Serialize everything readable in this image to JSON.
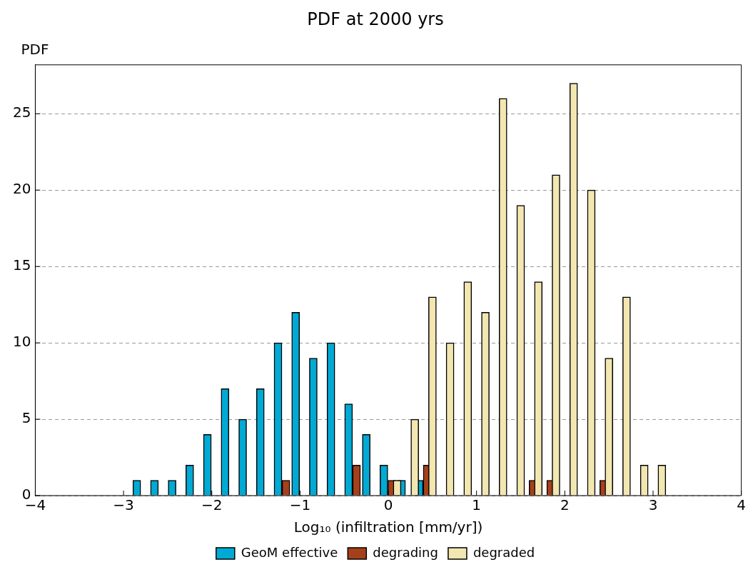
{
  "chart_data": {
    "type": "bar",
    "title": "PDF at 2000 yrs",
    "xlabel": "Log₁₀ (infiltration [mm/yr])",
    "ylabel": "PDF",
    "xlim": [
      -4,
      4
    ],
    "xticks": [
      {
        "value": -4,
        "label": "−4"
      },
      {
        "value": -3,
        "label": "−3"
      },
      {
        "value": -2,
        "label": "−2"
      },
      {
        "value": -1,
        "label": "−1"
      },
      0,
      1,
      2,
      3,
      4
    ],
    "ylim": [
      0,
      28.2
    ],
    "yticks": [
      0,
      5,
      10,
      15,
      20,
      25
    ],
    "grid": "y",
    "legend": "bottom",
    "series": [
      {
        "name": "GeoM effective",
        "color": "#00aad4",
        "x": [
          -2.85,
          -2.65,
          -2.45,
          -2.25,
          -2.05,
          -1.85,
          -1.65,
          -1.45,
          -1.25,
          -1.05,
          -0.85,
          -0.65,
          -0.45,
          -0.25,
          -0.05,
          0.15,
          0.35
        ],
        "values": [
          1,
          1,
          1,
          2,
          4,
          7,
          5,
          7,
          10,
          12,
          9,
          10,
          6,
          4,
          2,
          1,
          1
        ]
      },
      {
        "name": "degrading",
        "color": "#a5401b",
        "x": [
          -1.16,
          -0.36,
          0.04,
          0.44,
          1.64,
          1.84,
          2.44
        ],
        "values": [
          1,
          2,
          1,
          2,
          1,
          1,
          1
        ]
      },
      {
        "name": "degraded",
        "color": "#f2e6b1",
        "x": [
          0.1,
          0.3,
          0.5,
          0.7,
          0.9,
          1.1,
          1.3,
          1.5,
          1.7,
          1.9,
          2.1,
          2.3,
          2.5,
          2.7,
          2.9,
          3.1
        ],
        "values": [
          1,
          5,
          13,
          10,
          14,
          12,
          26,
          19,
          14,
          21,
          27,
          20,
          9,
          13,
          2,
          2
        ]
      }
    ]
  }
}
